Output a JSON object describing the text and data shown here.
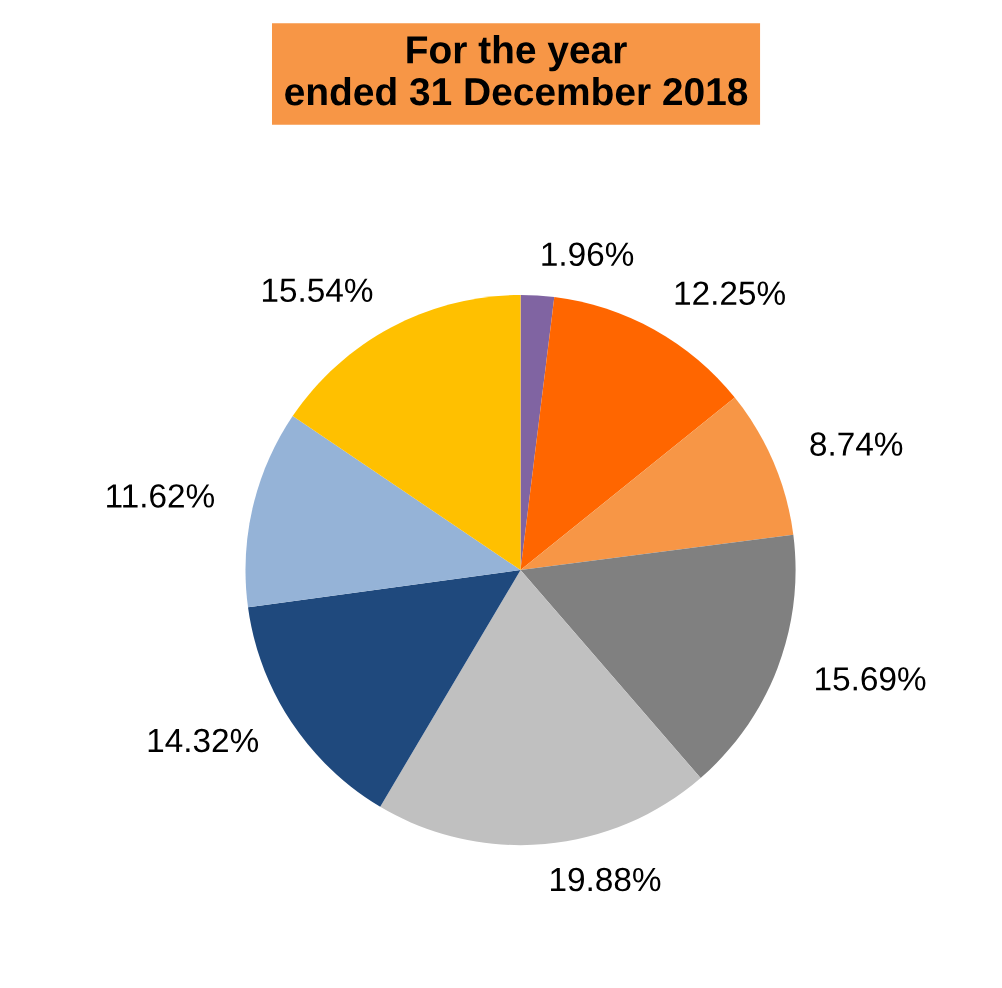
{
  "chart_data": {
    "type": "pie",
    "title": "For the year\nended 31 December 2018",
    "categories": [
      null,
      null,
      null,
      null,
      null,
      null,
      null,
      null
    ],
    "values": [
      1.96,
      12.25,
      8.74,
      15.69,
      19.88,
      14.32,
      11.62,
      15.54
    ],
    "colors": [
      "#8064a2",
      "#ff6600",
      "#f79646",
      "#808080",
      "#c0c0c0",
      "#1f497d",
      "#95b3d7",
      "#ffc000"
    ],
    "value_labels": [
      "1.96%",
      "12.25%",
      "8.74%",
      "15.69%",
      "19.88%",
      "14.32%",
      "11.62%",
      "15.54%"
    ],
    "legend": false
  }
}
